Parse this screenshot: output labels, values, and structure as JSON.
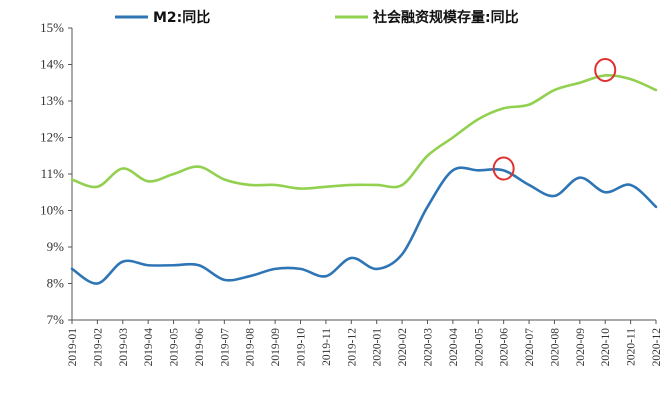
{
  "chart_data": {
    "type": "line",
    "title": "",
    "xlabel": "",
    "ylabel": "",
    "ylim": [
      7,
      15
    ],
    "y_ticks": [
      "7%",
      "8%",
      "9%",
      "10%",
      "11%",
      "12%",
      "13%",
      "14%",
      "15%"
    ],
    "categories": [
      "2019-01",
      "2019-02",
      "2019-03",
      "2019-04",
      "2019-05",
      "2019-06",
      "2019-07",
      "2019-08",
      "2019-09",
      "2019-10",
      "2019-11",
      "2019-12",
      "2020-01",
      "2020-02",
      "2020-03",
      "2020-04",
      "2020-05",
      "2020-06",
      "2020-07",
      "2020-08",
      "2020-09",
      "2020-10",
      "2020-11",
      "2020-12"
    ],
    "grid": false,
    "legend_position": "top",
    "series": [
      {
        "name": "M2:同比",
        "color": "#2e75b6",
        "values": [
          8.4,
          8.0,
          8.6,
          8.5,
          8.5,
          8.5,
          8.1,
          8.2,
          8.4,
          8.4,
          8.2,
          8.7,
          8.4,
          8.8,
          10.1,
          11.1,
          11.1,
          11.1,
          10.7,
          10.4,
          10.9,
          10.5,
          10.7,
          10.1
        ]
      },
      {
        "name": "社会融资规模存量:同比",
        "color": "#92d050",
        "values": [
          10.85,
          10.65,
          11.15,
          10.8,
          11.0,
          11.2,
          10.85,
          10.7,
          10.7,
          10.6,
          10.65,
          10.7,
          10.7,
          10.7,
          11.5,
          12.0,
          12.5,
          12.8,
          12.9,
          13.3,
          13.5,
          13.7,
          13.6,
          13.3
        ]
      }
    ],
    "annotations": [
      {
        "type": "circle-marker",
        "series": "M2:同比",
        "category": "2020-06",
        "value": 11.15,
        "color": "#e03030"
      },
      {
        "type": "circle-marker",
        "series": "社会融资规模存量:同比",
        "category": "2020-10",
        "value": 13.85,
        "color": "#e03030"
      }
    ]
  }
}
